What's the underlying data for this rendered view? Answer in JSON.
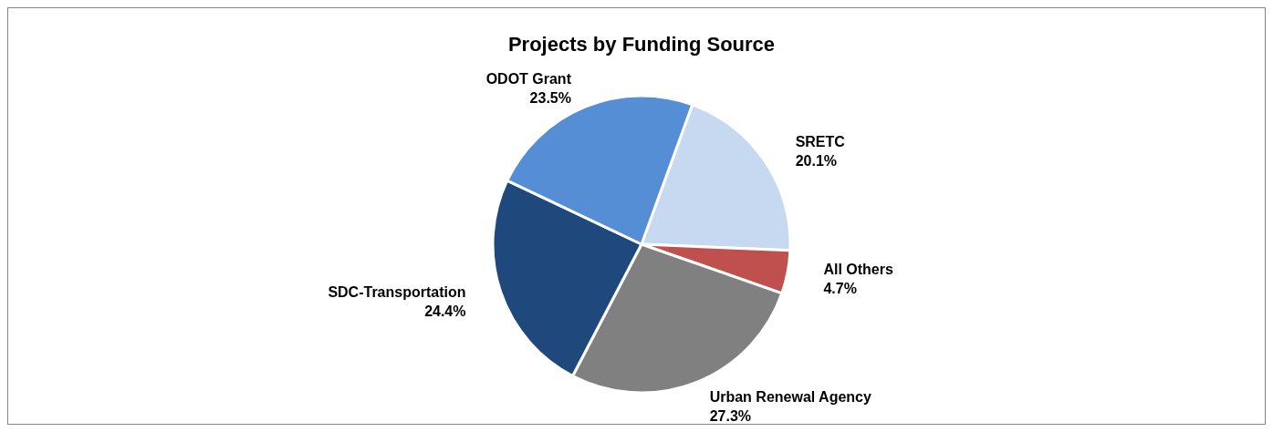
{
  "chart_data": {
    "type": "pie",
    "title": "Projects by Funding Source",
    "categories": [
      "SRETC",
      "All Others",
      "Urban Renewal Agency",
      "SDC-Transportation",
      "ODOT Grant"
    ],
    "values": [
      20.1,
      4.7,
      27.3,
      24.4,
      23.5
    ],
    "colors": [
      "#c6d9f1",
      "#c0504d",
      "#808080",
      "#1f497d",
      "#558ed5"
    ],
    "value_labels": [
      "20.1%",
      "4.7%",
      "27.3%",
      "24.4%",
      "23.5%"
    ]
  }
}
